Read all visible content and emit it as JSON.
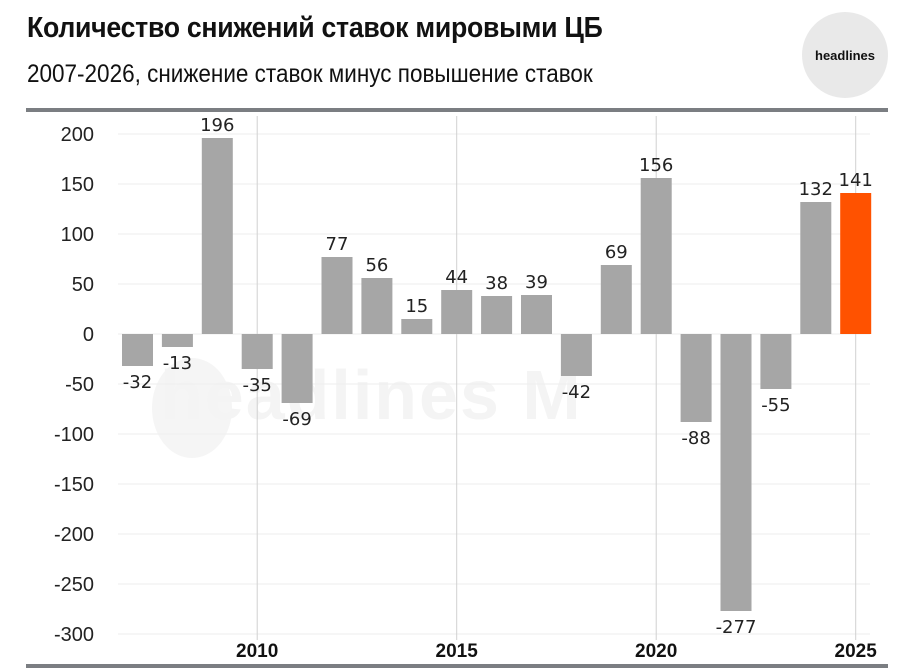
{
  "header": {
    "title": "Количество снижений ставок мировыми ЦБ",
    "subtitle": "2007-2026, снижение ставок минус повышение ставок",
    "logo_text": "headlines"
  },
  "watermark": {
    "text": "headlines M"
  },
  "colors": {
    "bar": "#a6a6a6",
    "highlight": "#ff5200",
    "grid": "#eeeeee",
    "vline": "#d0d0d0",
    "rule": "#7b7e82"
  },
  "chart_data": {
    "type": "bar",
    "title": "Количество снижений ставок мировыми ЦБ",
    "subtitle": "2007-2026, снижение ставок минус повышение ставок",
    "xlabel": "",
    "ylabel": "",
    "categories": [
      "2007",
      "2008",
      "2009",
      "2010",
      "2011",
      "2012",
      "2013",
      "2014",
      "2015",
      "2016",
      "2017",
      "2018",
      "2019",
      "2020",
      "2021",
      "2022",
      "2023",
      "2024",
      "2025",
      "2026"
    ],
    "values": [
      -32,
      -13,
      196,
      -35,
      -69,
      77,
      56,
      15,
      44,
      38,
      39,
      -42,
      69,
      156,
      -88,
      -277,
      -55,
      132,
      141,
      null
    ],
    "highlight_index": 18,
    "yticks": [
      200,
      150,
      100,
      50,
      0,
      -50,
      -100,
      -150,
      -200,
      -250,
      -300
    ],
    "xtick_labels": [
      "2010",
      "2015",
      "2020",
      "2025"
    ],
    "ylim": [
      -300,
      200
    ],
    "grid": true,
    "legend": null
  }
}
